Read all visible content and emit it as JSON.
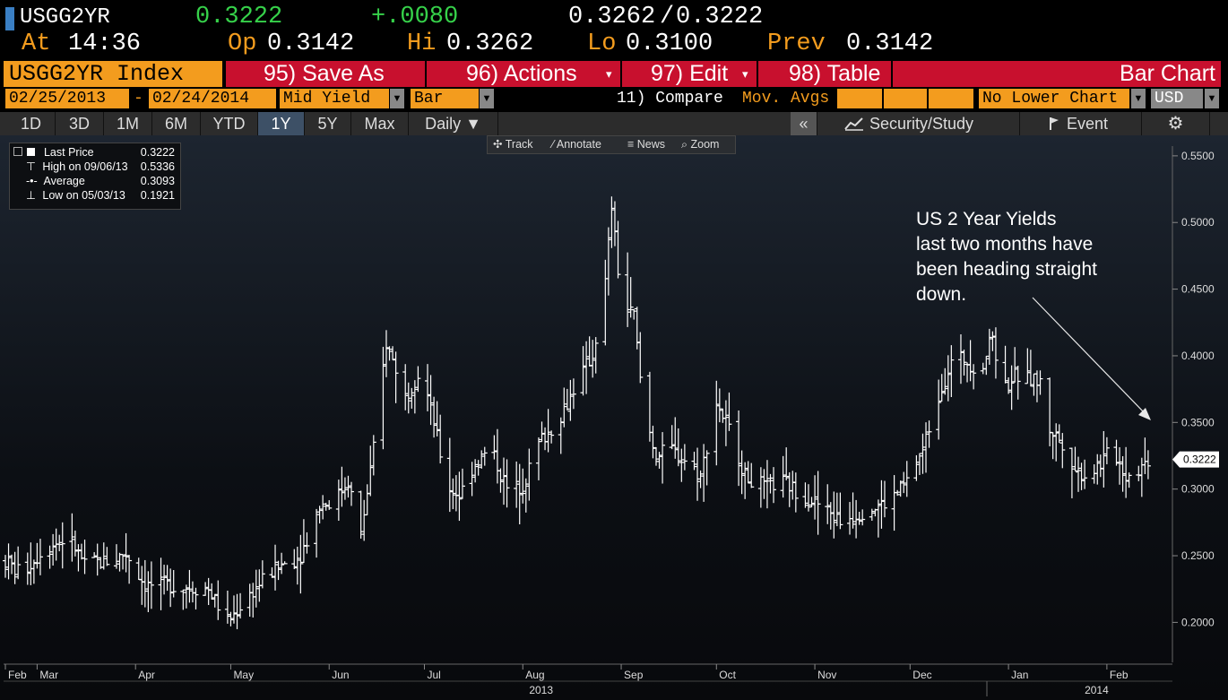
{
  "quote": {
    "ticker": "USGG2YR",
    "last": "0.3222",
    "change": "+.0080",
    "bid": "0.3262",
    "separator": "/",
    "ask": "0.3222",
    "at_label": "At",
    "time": "14:36",
    "open_label": "Op",
    "open": "0.3142",
    "high_label": "Hi",
    "high": "0.3262",
    "low_label": "Lo",
    "low": "0.3100",
    "prev_label": "Prev",
    "prev": "0.3142"
  },
  "command_bar": {
    "security": "USGG2YR Index",
    "save_as": "95) Save As",
    "actions": "96) Actions",
    "edit": "97) Edit",
    "table": "98) Table",
    "chart_type": "Bar Chart"
  },
  "params": {
    "start_date": "02/25/2013",
    "dash": "-",
    "end_date": "02/24/2014",
    "field": "Mid Yield",
    "style": "Bar",
    "compare": "11) Compare",
    "mov_avgs": "Mov. Avgs",
    "lower_chart": "No Lower Chart",
    "currency": "USD",
    "dropdown_glyph": "▼"
  },
  "toolbar": {
    "periods": [
      "1D",
      "3D",
      "1M",
      "6M",
      "YTD",
      "1Y",
      "5Y",
      "Max"
    ],
    "selected_period": "1Y",
    "frequency": "Daily ▼",
    "collapse": "«",
    "security_study": "Security/Study",
    "event": "Event",
    "settings_icon": "⚙",
    "chart_icon": "chart-icon",
    "event_icon": "flag-icon"
  },
  "chart_tools": {
    "track": "Track",
    "annotate": "Annotate",
    "news": "News",
    "zoom": "Zoom"
  },
  "legend": {
    "items": [
      {
        "label": "Last Price",
        "value": "0.3222"
      },
      {
        "label": "High on 09/06/13",
        "value": "0.5336"
      },
      {
        "label": "Average",
        "value": "0.3093"
      },
      {
        "label": "Low on 05/03/13",
        "value": "0.1921"
      }
    ]
  },
  "annotation": {
    "lines": [
      "US 2 Year Yields",
      "last two months have",
      "been heading straight",
      "down."
    ]
  },
  "colors": {
    "accent_orange": "#f39c1e",
    "red_bar": "#c8102e",
    "green": "#36d14a",
    "price_bars": "#ffffff"
  },
  "chart_data": {
    "type": "bar",
    "title": "USGG2YR Index",
    "series_name": "Mid Yield (daily OHLC)",
    "ylim": [
      0.17,
      0.56
    ],
    "y_ticks": [
      "0.2000",
      "0.2500",
      "0.3000",
      "0.3500",
      "0.4000",
      "0.4500",
      "0.5000",
      "0.5500"
    ],
    "y_tick_values": [
      0.2,
      0.25,
      0.3,
      0.35,
      0.4,
      0.45,
      0.5,
      0.55
    ],
    "x_months": [
      "Feb",
      "Mar",
      "Apr",
      "May",
      "Jun",
      "Jul",
      "Aug",
      "Sep",
      "Oct",
      "Nov",
      "Dec",
      "Jan",
      "Feb"
    ],
    "x_month_days": [
      0,
      10,
      41,
      71,
      102,
      132,
      163,
      194,
      224,
      255,
      285,
      316,
      347
    ],
    "x_years": [
      "2013",
      "2014"
    ],
    "x_year_days": [
      165,
      340
    ],
    "x_range_days": [
      0,
      362
    ],
    "last_price_label": "0.3222",
    "last_price": 0.3222,
    "anchors": [
      [
        0,
        0.246
      ],
      [
        5,
        0.236
      ],
      [
        12,
        0.255
      ],
      [
        20,
        0.264
      ],
      [
        25,
        0.243
      ],
      [
        34,
        0.247
      ],
      [
        38,
        0.252
      ],
      [
        44,
        0.228
      ],
      [
        50,
        0.228
      ],
      [
        58,
        0.226
      ],
      [
        64,
        0.225
      ],
      [
        70,
        0.2
      ],
      [
        76,
        0.218
      ],
      [
        81,
        0.232
      ],
      [
        87,
        0.243
      ],
      [
        93,
        0.25
      ],
      [
        99,
        0.288
      ],
      [
        104,
        0.292
      ],
      [
        108,
        0.306
      ],
      [
        112,
        0.265
      ],
      [
        116,
        0.33
      ],
      [
        120,
        0.41
      ],
      [
        126,
        0.37
      ],
      [
        131,
        0.39
      ],
      [
        135,
        0.35
      ],
      [
        139,
        0.303
      ],
      [
        143,
        0.295
      ],
      [
        148,
        0.32
      ],
      [
        153,
        0.33
      ],
      [
        158,
        0.3
      ],
      [
        163,
        0.302
      ],
      [
        168,
        0.335
      ],
      [
        172,
        0.345
      ],
      [
        176,
        0.36
      ],
      [
        181,
        0.385
      ],
      [
        185,
        0.4
      ],
      [
        189,
        0.455
      ],
      [
        191,
        0.512
      ],
      [
        194,
        0.44
      ],
      [
        198,
        0.43
      ],
      [
        201,
        0.36
      ],
      [
        205,
        0.325
      ],
      [
        210,
        0.33
      ],
      [
        215,
        0.32
      ],
      [
        219,
        0.31
      ],
      [
        224,
        0.365
      ],
      [
        229,
        0.34
      ],
      [
        233,
        0.31
      ],
      [
        239,
        0.302
      ],
      [
        245,
        0.305
      ],
      [
        251,
        0.296
      ],
      [
        256,
        0.289
      ],
      [
        263,
        0.276
      ],
      [
        267,
        0.28
      ],
      [
        272,
        0.285
      ],
      [
        278,
        0.29
      ],
      [
        284,
        0.305
      ],
      [
        289,
        0.33
      ],
      [
        294,
        0.37
      ],
      [
        298,
        0.395
      ],
      [
        302,
        0.398
      ],
      [
        307,
        0.387
      ],
      [
        311,
        0.415
      ],
      [
        314,
        0.374
      ],
      [
        318,
        0.385
      ],
      [
        322,
        0.383
      ],
      [
        326,
        0.38
      ],
      [
        329,
        0.345
      ],
      [
        333,
        0.335
      ],
      [
        337,
        0.315
      ],
      [
        341,
        0.31
      ],
      [
        345,
        0.32
      ],
      [
        349,
        0.33
      ],
      [
        353,
        0.31
      ],
      [
        357,
        0.315
      ],
      [
        360,
        0.322
      ]
    ]
  }
}
